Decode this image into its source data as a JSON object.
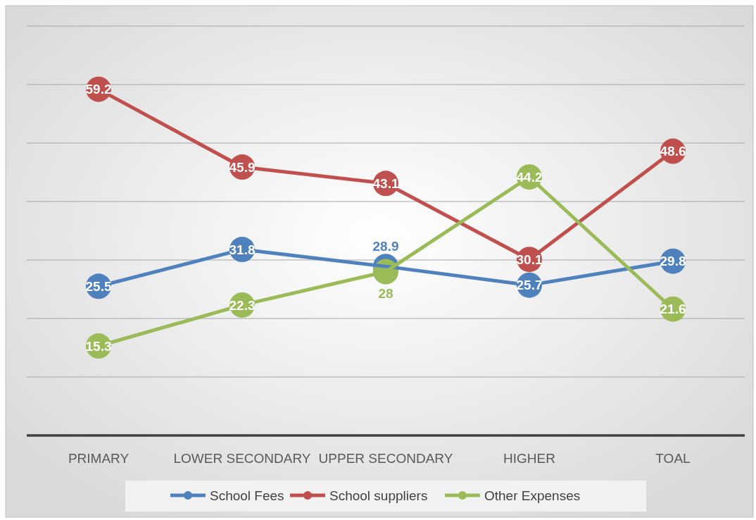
{
  "chart_data": {
    "type": "line",
    "categories": [
      "PRIMARY",
      "LOWER SECONDARY",
      "UPPER SECONDARY",
      "HIGHER",
      "TOAL"
    ],
    "series": [
      {
        "name": "School Fees",
        "color": "#4f81bd",
        "values": [
          25.5,
          31.8,
          28.9,
          25.7,
          29.8
        ]
      },
      {
        "name": "School suppliers",
        "color": "#c0504d",
        "values": [
          59.2,
          45.9,
          43.1,
          30.1,
          48.6
        ]
      },
      {
        "name": "Other Expenses",
        "color": "#9bbb59",
        "values": [
          15.3,
          22.3,
          28,
          44.2,
          21.6
        ]
      }
    ],
    "ylim": [
      0,
      70
    ],
    "yticks": [
      {
        "value": 0,
        "label": null
      },
      {
        "value": 10,
        "label": null
      },
      {
        "value": 20,
        "label": null
      },
      {
        "value": 30,
        "label": null
      },
      {
        "value": 40,
        "label": null
      },
      {
        "value": 50,
        "label": null
      },
      {
        "value": 60,
        "label": null
      },
      {
        "value": 70,
        "label": null
      }
    ],
    "tick_labels": "x",
    "grid": "y",
    "legend": "bottom",
    "marker": "circle",
    "line_style": "solid",
    "data_labels": true
  }
}
